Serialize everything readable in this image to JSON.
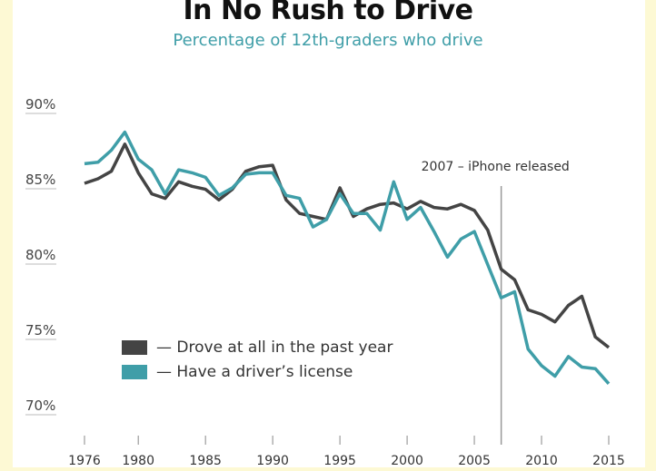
{
  "chart_data": {
    "type": "line",
    "title": "In No Rush to Drive",
    "subtitle": "Percentage of 12th-graders who drive",
    "xlabel": "",
    "ylabel": "",
    "ylim": [
      68,
      91
    ],
    "xlim": [
      1976,
      2015
    ],
    "yticks": [
      {
        "v": 90,
        "label": "90%"
      },
      {
        "v": 85,
        "label": "85%"
      },
      {
        "v": 80,
        "label": "80%"
      },
      {
        "v": 75,
        "label": "75%"
      },
      {
        "v": 70,
        "label": "70%"
      }
    ],
    "xticks": [
      {
        "v": 1976,
        "label": "1976"
      },
      {
        "v": 1980,
        "label": "1980"
      },
      {
        "v": 1985,
        "label": "1985"
      },
      {
        "v": 1990,
        "label": "1990"
      },
      {
        "v": 1995,
        "label": "1995"
      },
      {
        "v": 2000,
        "label": "2000"
      },
      {
        "v": 2005,
        "label": "2005"
      },
      {
        "v": 2010,
        "label": "2010"
      },
      {
        "v": 2015,
        "label": "2015"
      }
    ],
    "x": [
      1976,
      1977,
      1978,
      1979,
      1980,
      1981,
      1982,
      1983,
      1984,
      1985,
      1986,
      1987,
      1988,
      1989,
      1990,
      1991,
      1992,
      1993,
      1994,
      1995,
      1996,
      1997,
      1998,
      1999,
      2000,
      2001,
      2002,
      2003,
      2004,
      2005,
      2006,
      2007,
      2008,
      2009,
      2010,
      2011,
      2012,
      2013,
      2014,
      2015
    ],
    "series": [
      {
        "name": "— Drove at all in the past year",
        "color": "#444444",
        "values": [
          85.0,
          85.3,
          85.8,
          87.6,
          85.7,
          84.3,
          84.0,
          85.1,
          84.8,
          84.6,
          83.9,
          84.6,
          85.8,
          86.1,
          86.2,
          83.9,
          83.0,
          82.8,
          82.6,
          84.7,
          82.8,
          83.3,
          83.6,
          83.7,
          83.3,
          83.8,
          83.4,
          83.3,
          83.6,
          83.2,
          81.9,
          79.3,
          78.6,
          76.6,
          76.3,
          75.8,
          76.9,
          77.5,
          74.8,
          74.1
        ]
      },
      {
        "name": "— Have a driver’s license",
        "color": "#3f9ea8",
        "values": [
          86.3,
          86.4,
          87.2,
          88.4,
          86.6,
          85.9,
          84.3,
          85.9,
          85.7,
          85.4,
          84.2,
          84.7,
          85.6,
          85.7,
          85.7,
          84.2,
          84.0,
          82.1,
          82.6,
          84.3,
          83.0,
          83.0,
          81.9,
          85.1,
          82.6,
          83.4,
          81.8,
          80.1,
          81.3,
          81.8,
          79.6,
          77.4,
          77.8,
          74.0,
          72.9,
          72.2,
          73.5,
          72.8,
          72.7,
          71.7
        ]
      }
    ],
    "annotations": [
      {
        "x": 2007,
        "label": "2007 – iPhone released"
      }
    ],
    "grid": false,
    "legend_position": "bottom-left"
  }
}
